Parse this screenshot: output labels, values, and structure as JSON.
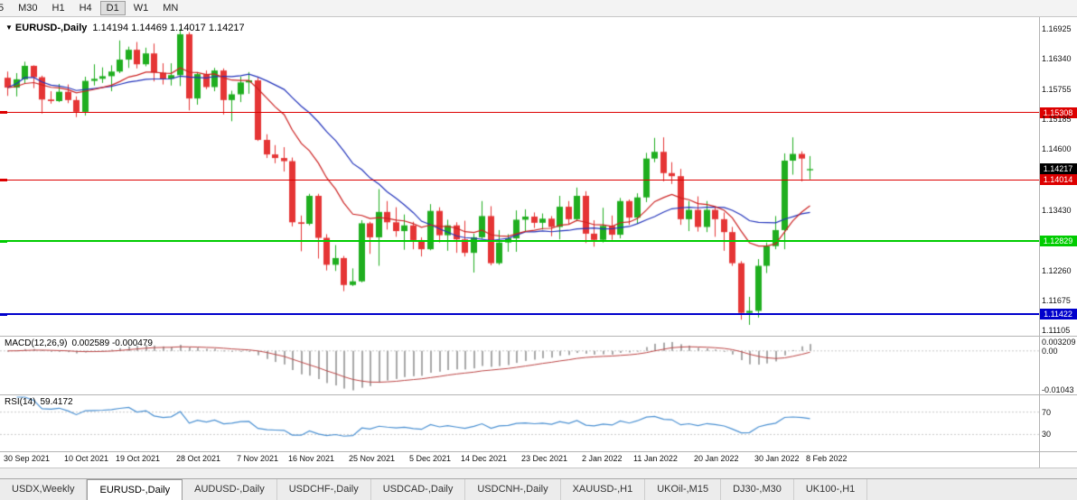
{
  "toolbar": {
    "timeframes": [
      {
        "label": "5",
        "active": false
      },
      {
        "label": "M30",
        "active": false
      },
      {
        "label": "H1",
        "active": false
      },
      {
        "label": "H4",
        "active": false
      },
      {
        "label": "D1",
        "active": true
      },
      {
        "label": "W1",
        "active": false
      },
      {
        "label": "MN",
        "active": false
      }
    ]
  },
  "chart": {
    "title_symbol": "EURUSD-,Daily",
    "title_ohlc": "1.14194 1.14469 1.14017 1.14217"
  },
  "indicators": {
    "macd": {
      "label": "MACD(12,26,9)",
      "values": "0.002589 -0.000479",
      "fast": 12,
      "slow": 26,
      "signal": 9,
      "axis_labels": [
        "0.003209",
        "0.00",
        "-0.01043"
      ],
      "range": [
        -0.0107,
        0.0035
      ]
    },
    "rsi": {
      "label": "RSI(14)",
      "value": "59.4172",
      "period": 14,
      "level_labels": [
        "70",
        "30"
      ],
      "levels": [
        70,
        30
      ],
      "range": [
        0,
        100
      ]
    }
  },
  "colors": {
    "bull": "#1fae1f",
    "bear": "#e53535",
    "ma_blue": "#2233bb",
    "ma_red": "#cc2222",
    "macd_hist": "#a8a8a8",
    "macd_signal": "#bb4444",
    "rsi_line": "#4a90d2",
    "grid_dash": "#c8c8c8",
    "current_badge": "#000000"
  },
  "chart_data": {
    "type": "candlestick",
    "symbol": "EURUSD-",
    "timeframe": "Daily",
    "y_range": [
      1.11,
      1.1715
    ],
    "current_price": 1.14217,
    "current_price_label": "1.14217",
    "y_tick_labels": [
      "1.16925",
      "1.16340",
      "1.15755",
      "1.15185",
      "1.14600",
      "1.13430",
      "1.12260",
      "1.11675",
      "1.11105"
    ],
    "x_labels": [
      {
        "index": 0,
        "label": "30 Sep 2021"
      },
      {
        "index": 7,
        "label": "10 Oct 2021"
      },
      {
        "index": 13,
        "label": "19 Oct 2021"
      },
      {
        "index": 20,
        "label": "28 Oct 2021"
      },
      {
        "index": 27,
        "label": "7 Nov 2021"
      },
      {
        "index": 33,
        "label": "16 Nov 2021"
      },
      {
        "index": 40,
        "label": "25 Nov 2021"
      },
      {
        "index": 47,
        "label": "5 Dec 2021"
      },
      {
        "index": 53,
        "label": "14 Dec 2021"
      },
      {
        "index": 60,
        "label": "23 Dec 2021"
      },
      {
        "index": 67,
        "label": "2 Jan 2022"
      },
      {
        "index": 73,
        "label": "11 Jan 2022"
      },
      {
        "index": 80,
        "label": "20 Jan 2022"
      },
      {
        "index": 87,
        "label": "30 Jan 2022"
      },
      {
        "index": 93,
        "label": "8 Feb 2022"
      }
    ],
    "levels": [
      {
        "name": "resistance-line-upper",
        "label": "1.15308",
        "price": 1.15308,
        "color": "#dd0000",
        "thickness": 1
      },
      {
        "name": "resistance-line-lower",
        "label": "1.14014",
        "price": 1.14014,
        "color": "#dd0000",
        "thickness": 1
      },
      {
        "name": "support-line-green",
        "label": "1.12829",
        "price": 1.12829,
        "color": "#00cc00",
        "thickness": 2
      },
      {
        "name": "support-line-blue",
        "label": "1.11422",
        "price": 1.11422,
        "color": "#0000cc",
        "thickness": 2
      }
    ],
    "overlays": [
      {
        "name": "ma-slow-blue",
        "type": "sma",
        "period": 20,
        "color": "#2233bb"
      },
      {
        "name": "ma-fast-red",
        "type": "ema",
        "period": 13,
        "color": "#cc2222"
      }
    ],
    "candles": [
      [
        1.1598,
        1.161,
        1.1563,
        1.1579
      ],
      [
        1.1579,
        1.1607,
        1.1562,
        1.1595
      ],
      [
        1.1595,
        1.1629,
        1.1586,
        1.1621
      ],
      [
        1.1621,
        1.1622,
        1.1578,
        1.1599
      ],
      [
        1.1599,
        1.1602,
        1.1529,
        1.1556
      ],
      [
        1.1556,
        1.1572,
        1.1548,
        1.1553
      ],
      [
        1.1553,
        1.1586,
        1.1551,
        1.1571
      ],
      [
        1.1571,
        1.1585,
        1.1549,
        1.1555
      ],
      [
        1.1555,
        1.1562,
        1.1522,
        1.1532
      ],
      [
        1.1532,
        1.16,
        1.1525,
        1.1592
      ],
      [
        1.1592,
        1.1624,
        1.1583,
        1.1596
      ],
      [
        1.1596,
        1.1618,
        1.1588,
        1.1601
      ],
      [
        1.1601,
        1.1622,
        1.1572,
        1.161
      ],
      [
        1.161,
        1.167,
        1.1607,
        1.1633
      ],
      [
        1.1633,
        1.1658,
        1.1617,
        1.1652
      ],
      [
        1.1652,
        1.1667,
        1.1616,
        1.1624
      ],
      [
        1.1624,
        1.1656,
        1.162,
        1.1645
      ],
      [
        1.1645,
        1.1664,
        1.1591,
        1.1608
      ],
      [
        1.1608,
        1.1626,
        1.1585,
        1.1596
      ],
      [
        1.1596,
        1.1626,
        1.1583,
        1.1603
      ],
      [
        1.1603,
        1.1692,
        1.1582,
        1.1682
      ],
      [
        1.1682,
        1.1686,
        1.1535,
        1.1558
      ],
      [
        1.1558,
        1.1609,
        1.1546,
        1.1605
      ],
      [
        1.1605,
        1.1612,
        1.1576,
        1.158
      ],
      [
        1.158,
        1.1617,
        1.1572,
        1.1612
      ],
      [
        1.1612,
        1.1616,
        1.1527,
        1.1555
      ],
      [
        1.1555,
        1.1573,
        1.1514,
        1.1566
      ],
      [
        1.1566,
        1.16,
        1.1551,
        1.1589
      ],
      [
        1.1589,
        1.1609,
        1.1567,
        1.1593
      ],
      [
        1.1593,
        1.1598,
        1.1476,
        1.1478
      ],
      [
        1.1478,
        1.1489,
        1.1443,
        1.145
      ],
      [
        1.145,
        1.1468,
        1.1433,
        1.1443
      ],
      [
        1.1443,
        1.1464,
        1.1417,
        1.1437
      ],
      [
        1.1437,
        1.1444,
        1.1311,
        1.1319
      ],
      [
        1.1319,
        1.1332,
        1.1263,
        1.1316
      ],
      [
        1.1316,
        1.1374,
        1.1313,
        1.137
      ],
      [
        1.137,
        1.1374,
        1.1249,
        1.1289
      ],
      [
        1.1289,
        1.1296,
        1.1226,
        1.1237
      ],
      [
        1.1237,
        1.1275,
        1.1225,
        1.125
      ],
      [
        1.125,
        1.1254,
        1.1186,
        1.1198
      ],
      [
        1.1198,
        1.123,
        1.1196,
        1.1205
      ],
      [
        1.1205,
        1.1323,
        1.1203,
        1.1317
      ],
      [
        1.1317,
        1.132,
        1.1258,
        1.129
      ],
      [
        1.129,
        1.1383,
        1.1235,
        1.1339
      ],
      [
        1.1339,
        1.136,
        1.1305,
        1.1319
      ],
      [
        1.1319,
        1.1348,
        1.1291,
        1.1302
      ],
      [
        1.1302,
        1.1334,
        1.1266,
        1.1313
      ],
      [
        1.1313,
        1.132,
        1.1267,
        1.1284
      ],
      [
        1.1284,
        1.129,
        1.1253,
        1.1267
      ],
      [
        1.1267,
        1.1354,
        1.1265,
        1.1341
      ],
      [
        1.1341,
        1.1348,
        1.128,
        1.1294
      ],
      [
        1.1294,
        1.1324,
        1.1264,
        1.1313
      ],
      [
        1.1313,
        1.1319,
        1.126,
        1.1286
      ],
      [
        1.1286,
        1.1322,
        1.1253,
        1.126
      ],
      [
        1.126,
        1.1297,
        1.1222,
        1.129
      ],
      [
        1.129,
        1.136,
        1.1287,
        1.1331
      ],
      [
        1.1331,
        1.135,
        1.1236,
        1.124
      ],
      [
        1.124,
        1.1304,
        1.1237,
        1.128
      ],
      [
        1.128,
        1.1296,
        1.1262,
        1.1288
      ],
      [
        1.1288,
        1.1342,
        1.1262,
        1.1324
      ],
      [
        1.1324,
        1.1344,
        1.1301,
        1.133
      ],
      [
        1.133,
        1.1338,
        1.1308,
        1.1318
      ],
      [
        1.1318,
        1.1336,
        1.1305,
        1.1326
      ],
      [
        1.1326,
        1.1331,
        1.1292,
        1.131
      ],
      [
        1.131,
        1.137,
        1.1286,
        1.1349
      ],
      [
        1.1349,
        1.136,
        1.1316,
        1.1325
      ],
      [
        1.1325,
        1.1386,
        1.1321,
        1.137
      ],
      [
        1.137,
        1.1379,
        1.1279,
        1.1297
      ],
      [
        1.1297,
        1.1323,
        1.1272,
        1.1285
      ],
      [
        1.1285,
        1.1347,
        1.128,
        1.1312
      ],
      [
        1.1312,
        1.1332,
        1.1285,
        1.1295
      ],
      [
        1.1295,
        1.1366,
        1.1288,
        1.136
      ],
      [
        1.136,
        1.1363,
        1.1314,
        1.1328
      ],
      [
        1.1328,
        1.1375,
        1.1316,
        1.1367
      ],
      [
        1.1367,
        1.1453,
        1.1358,
        1.1442
      ],
      [
        1.1442,
        1.1482,
        1.1435,
        1.1455
      ],
      [
        1.1455,
        1.1483,
        1.1398,
        1.1414
      ],
      [
        1.1414,
        1.1435,
        1.1393,
        1.1408
      ],
      [
        1.1408,
        1.1422,
        1.1314,
        1.1325
      ],
      [
        1.1325,
        1.136,
        1.1302,
        1.1343
      ],
      [
        1.1343,
        1.1369,
        1.1301,
        1.131
      ],
      [
        1.131,
        1.136,
        1.13,
        1.1343
      ],
      [
        1.1343,
        1.1349,
        1.1291,
        1.1325
      ],
      [
        1.1325,
        1.1338,
        1.1264,
        1.13
      ],
      [
        1.13,
        1.131,
        1.1235,
        1.124
      ],
      [
        1.124,
        1.1244,
        1.1131,
        1.1144
      ],
      [
        1.1144,
        1.1175,
        1.1121,
        1.1148
      ],
      [
        1.1148,
        1.1248,
        1.1135,
        1.1235
      ],
      [
        1.1235,
        1.128,
        1.1221,
        1.1273
      ],
      [
        1.1273,
        1.1331,
        1.1267,
        1.1304
      ],
      [
        1.1304,
        1.1452,
        1.1267,
        1.1438
      ],
      [
        1.1438,
        1.1483,
        1.1411,
        1.1451
      ],
      [
        1.1451,
        1.1456,
        1.1398,
        1.1442
      ],
      [
        1.14194,
        1.14469,
        1.14017,
        1.14217
      ]
    ]
  },
  "tabs": [
    {
      "label": "USDX,Weekly",
      "active": false
    },
    {
      "label": "EURUSD-,Daily",
      "active": true
    },
    {
      "label": "AUDUSD-,Daily",
      "active": false
    },
    {
      "label": "USDCHF-,Daily",
      "active": false
    },
    {
      "label": "USDCAD-,Daily",
      "active": false
    },
    {
      "label": "USDCNH-,Daily",
      "active": false
    },
    {
      "label": "XAUUSD-,H1",
      "active": false
    },
    {
      "label": "UKOil-,M15",
      "active": false
    },
    {
      "label": "DJ30-,M30",
      "active": false
    },
    {
      "label": "UK100-,H1",
      "active": false
    }
  ]
}
